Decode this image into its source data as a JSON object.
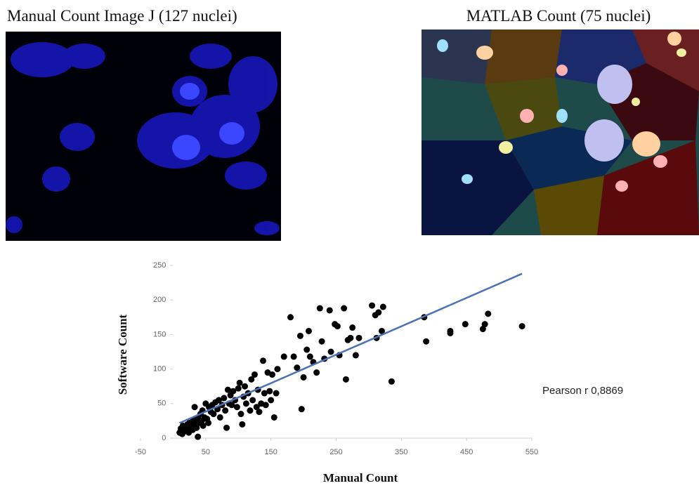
{
  "panels": {
    "left_title": "Manual Count Image J (127 nuclei)",
    "right_title": "MATLAB Count (75 nuclei)"
  },
  "chart_data": {
    "type": "scatter",
    "x_label": "Manual Count",
    "y_label": "Software Count",
    "annotation": "Pearson r 0,8869",
    "color": "#000000",
    "x": [
      10,
      12,
      14,
      15,
      17,
      18,
      20,
      22,
      24,
      25,
      27,
      28,
      30,
      30,
      32,
      33,
      35,
      36,
      38,
      38,
      40,
      42,
      44,
      45,
      46,
      48,
      50,
      52,
      54,
      55,
      58,
      60,
      62,
      65,
      68,
      70,
      72,
      75,
      78,
      80,
      82,
      84,
      86,
      88,
      90,
      92,
      95,
      98,
      100,
      102,
      104,
      106,
      108,
      110,
      112,
      115,
      118,
      120,
      122,
      125,
      128,
      130,
      132,
      135,
      138,
      140,
      142,
      145,
      148,
      150,
      152,
      155,
      158,
      160,
      170,
      180,
      185,
      190,
      195,
      197,
      200,
      205,
      208,
      210,
      215,
      220,
      225,
      228,
      232,
      240,
      242,
      248,
      252,
      255,
      262,
      265,
      268,
      272,
      275,
      280,
      285,
      305,
      310,
      312,
      315,
      320,
      322,
      335,
      385,
      388,
      425,
      425,
      448,
      475,
      478,
      483,
      535
    ],
    "values": [
      8,
      14,
      6,
      18,
      12,
      10,
      15,
      20,
      8,
      22,
      14,
      18,
      25,
      12,
      20,
      45,
      28,
      15,
      30,
      2,
      22,
      35,
      25,
      40,
      18,
      30,
      50,
      28,
      22,
      45,
      38,
      48,
      35,
      52,
      42,
      55,
      30,
      48,
      58,
      40,
      15,
      70,
      50,
      62,
      48,
      68,
      55,
      45,
      72,
      80,
      35,
      20,
      60,
      75,
      50,
      65,
      40,
      85,
      55,
      92,
      45,
      70,
      38,
      50,
      112,
      65,
      48,
      95,
      68,
      55,
      92,
      30,
      65,
      100,
      118,
      175,
      118,
      102,
      148,
      42,
      88,
      128,
      155,
      118,
      110,
      95,
      188,
      140,
      115,
      185,
      125,
      165,
      162,
      120,
      188,
      85,
      142,
      145,
      160,
      120,
      145,
      192,
      178,
      145,
      182,
      155,
      190,
      82,
      175,
      140,
      155,
      152,
      165,
      158,
      165,
      180,
      162
    ],
    "trendline": {
      "x": [
        10,
        535
      ],
      "y": [
        22,
        238
      ],
      "color": "#4a72b5"
    },
    "xlim": [
      -50,
      550
    ],
    "xticks": [
      -50,
      50,
      150,
      250,
      350,
      450,
      550
    ],
    "ylim": [
      0,
      250
    ],
    "yticks": [
      0,
      50,
      100,
      150,
      200,
      250
    ],
    "grid": false
  }
}
